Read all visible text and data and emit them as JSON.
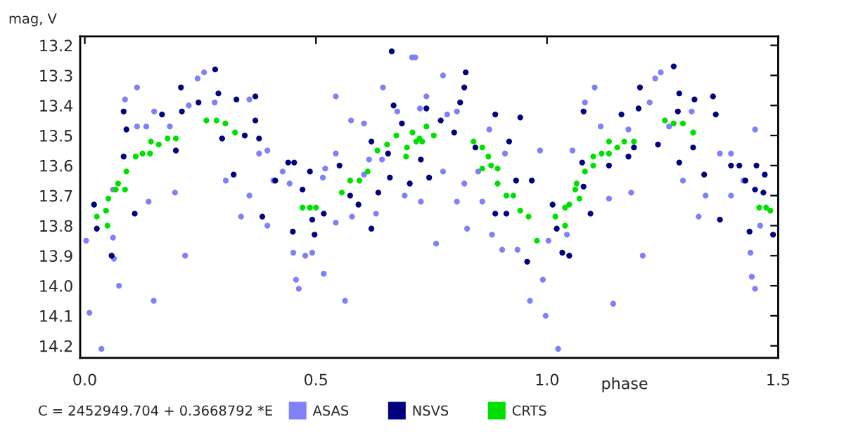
{
  "chart_data": {
    "type": "scatter",
    "xlabel": "phase",
    "ylabel": "mag, V",
    "annotations": [
      "C = 2452949.704 + 0.3668792 *E"
    ],
    "xlim": [
      -0.01,
      1.5
    ],
    "xticks": [
      {
        "value": 0,
        "label": "0.0"
      },
      0.5,
      {
        "value": 1,
        "label": "1.0"
      },
      1.5
    ],
    "ylim": [
      14.24,
      13.17
    ],
    "yticks": [
      13.2,
      13.3,
      13.4,
      13.5,
      13.6,
      13.7,
      13.8,
      13.9,
      {
        "value": 14,
        "label": "14.0"
      },
      14.1,
      14.2
    ],
    "grid": false,
    "legend": "bottom",
    "marker": "circle",
    "series": [
      {
        "name": "ASAS",
        "color": "#8080f8",
        "x": [
          0.003,
          0.01,
          0.036,
          0.061,
          0.063,
          0.074,
          0.061,
          0.087,
          0.113,
          0.113,
          0.133,
          0.138,
          0.149,
          0.15,
          0.184,
          0.195,
          0.217,
          0.225,
          0.244,
          0.258,
          0.281,
          0.297,
          0.305,
          0.338,
          0.356,
          0.356,
          0.377,
          0.395,
          0.395,
          0.408,
          0.428,
          0.443,
          0.451,
          0.457,
          0.463,
          0.477,
          0.492,
          0.515,
          0.52,
          0.543,
          0.543,
          0.543,
          0.517,
          0.563,
          0.578,
          0.576,
          0.604,
          0.615,
          0.604,
          0.63,
          0.645,
          0.643,
          0.676,
          0.692,
          0.715,
          0.725,
          0.727,
          0.708,
          0.739,
          0.76,
          0.775,
          0.775,
          0.784,
          0.805,
          0.805,
          0.821,
          0.827,
          0.851,
          0.86,
          0.875,
          0.881,
          0.909,
          0.903,
          0.936,
          0.963,
          0.985,
          0.991,
          0.997,
          1.003,
          1.024,
          1.043,
          1.055,
          1.082,
          1.103,
          1.116,
          1.134,
          1.143,
          1.176,
          1.182,
          1.207,
          1.222,
          1.246,
          1.234,
          1.264,
          1.294,
          1.313,
          1.328,
          1.343,
          1.374,
          1.398,
          1.398,
          1.425,
          1.44,
          1.443,
          1.45,
          1.461,
          1.45
        ],
        "values": [
          13.85,
          14.09,
          14.21,
          13.68,
          13.91,
          14.0,
          13.84,
          13.38,
          13.34,
          13.47,
          13.47,
          13.72,
          14.05,
          13.42,
          13.47,
          13.69,
          13.9,
          13.4,
          13.31,
          13.29,
          13.39,
          13.51,
          13.65,
          13.77,
          13.7,
          13.38,
          13.56,
          13.55,
          13.8,
          13.65,
          13.62,
          13.66,
          13.89,
          13.98,
          14.01,
          13.9,
          13.89,
          13.64,
          13.61,
          13.56,
          13.37,
          13.79,
          13.96,
          14.05,
          13.77,
          13.45,
          13.46,
          13.58,
          13.63,
          13.76,
          13.34,
          13.58,
          13.42,
          13.7,
          13.24,
          13.41,
          13.72,
          13.24,
          13.37,
          13.86,
          13.3,
          13.62,
          13.43,
          13.42,
          13.72,
          13.66,
          13.81,
          13.62,
          13.72,
          13.48,
          13.83,
          13.56,
          13.88,
          13.88,
          14.05,
          13.55,
          13.98,
          14.1,
          13.85,
          14.21,
          13.83,
          13.55,
          13.39,
          13.34,
          13.47,
          13.71,
          14.06,
          13.48,
          13.69,
          13.9,
          13.39,
          13.29,
          13.31,
          13.47,
          13.65,
          13.42,
          13.77,
          13.7,
          13.56,
          13.7,
          13.56,
          13.65,
          13.89,
          13.97,
          14.01,
          13.8,
          13.48
        ]
      },
      {
        "name": "NSVS",
        "color": "#000080",
        "x": [
          0.02,
          0.026,
          0.058,
          0.084,
          0.09,
          0.084,
          0.108,
          0.167,
          0.208,
          0.21,
          0.197,
          0.246,
          0.282,
          0.289,
          0.297,
          0.328,
          0.369,
          0.369,
          0.346,
          0.322,
          0.377,
          0.384,
          0.412,
          0.44,
          0.45,
          0.453,
          0.487,
          0.471,
          0.492,
          0.497,
          0.517,
          0.551,
          0.574,
          0.592,
          0.62,
          0.635,
          0.62,
          0.664,
          0.668,
          0.686,
          0.656,
          0.703,
          0.727,
          0.66,
          0.739,
          0.77,
          0.799,
          0.824,
          0.821,
          0.812,
          0.745,
          0.845,
          0.888,
          0.918,
          0.888,
          0.912,
          0.942,
          0.933,
          0.957,
          0.967,
          1.012,
          1.021,
          1.033,
          1.048,
          1.079,
          1.076,
          1.079,
          1.094,
          1.134,
          1.161,
          1.176,
          1.188,
          1.201,
          1.198,
          1.24,
          1.274,
          1.283,
          1.286,
          1.286,
          1.319,
          1.316,
          1.359,
          1.365,
          1.34,
          1.374,
          1.398,
          1.429,
          1.453,
          1.471,
          1.45,
          1.438,
          1.468,
          1.489,
          1.416
        ],
        "values": [
          13.73,
          13.81,
          13.9,
          13.42,
          13.48,
          13.57,
          13.76,
          13.43,
          13.34,
          13.42,
          13.55,
          13.39,
          13.28,
          13.36,
          13.51,
          13.38,
          13.37,
          13.45,
          13.5,
          13.63,
          13.51,
          13.77,
          13.65,
          13.59,
          13.82,
          13.59,
          13.62,
          13.68,
          13.78,
          13.83,
          13.76,
          13.6,
          13.7,
          13.73,
          13.81,
          13.69,
          13.52,
          13.22,
          13.4,
          13.46,
          13.56,
          13.66,
          13.58,
          13.64,
          13.41,
          13.45,
          13.49,
          13.29,
          13.34,
          13.39,
          13.64,
          13.54,
          13.43,
          13.52,
          13.76,
          13.76,
          13.44,
          13.65,
          13.92,
          13.65,
          13.73,
          13.81,
          13.89,
          13.9,
          13.42,
          13.59,
          13.67,
          13.76,
          13.6,
          13.43,
          13.57,
          13.54,
          13.34,
          13.41,
          13.53,
          13.27,
          13.42,
          13.59,
          13.36,
          13.38,
          13.54,
          13.37,
          13.43,
          13.63,
          13.78,
          13.6,
          13.65,
          13.6,
          13.63,
          13.68,
          13.82,
          13.69,
          13.83,
          13.6
        ]
      },
      {
        "name": "CRTS",
        "color": "#00e000",
        "x": [
          0.026,
          0.046,
          0.051,
          0.067,
          0.072,
          0.087,
          0.09,
          0.11,
          0.125,
          0.141,
          0.143,
          0.16,
          0.179,
          0.197,
          0.263,
          0.285,
          0.304,
          0.325,
          0.049,
          0.471,
          0.487,
          0.5,
          0.556,
          0.574,
          0.594,
          0.612,
          0.633,
          0.654,
          0.674,
          0.697,
          0.717,
          0.73,
          0.695,
          0.709,
          0.724,
          0.739,
          0.755,
          0.841,
          0.86,
          0.86,
          0.873,
          0.879,
          0.893,
          0.893,
          0.912,
          0.927,
          0.942,
          0.96,
          0.978,
          1.018,
          1.039,
          1.039,
          1.048,
          1.061,
          1.064,
          1.07,
          1.082,
          1.1,
          1.1,
          1.118,
          1.134,
          1.134,
          1.152,
          1.167,
          1.188,
          1.255,
          1.274,
          1.294,
          1.316,
          1.459,
          1.474,
          1.483
        ],
        "values": [
          13.77,
          13.75,
          13.71,
          13.68,
          13.66,
          13.68,
          13.62,
          13.57,
          13.56,
          13.56,
          13.52,
          13.53,
          13.51,
          13.51,
          13.45,
          13.45,
          13.46,
          13.49,
          13.8,
          13.74,
          13.74,
          13.74,
          13.69,
          13.65,
          13.65,
          13.62,
          13.55,
          13.53,
          13.5,
          13.54,
          13.52,
          13.52,
          13.57,
          13.49,
          13.51,
          13.47,
          13.5,
          13.52,
          13.54,
          13.61,
          13.57,
          13.6,
          13.61,
          13.66,
          13.7,
          13.7,
          13.75,
          13.77,
          13.85,
          13.77,
          13.74,
          13.8,
          13.73,
          13.68,
          13.66,
          13.71,
          13.62,
          13.6,
          13.57,
          13.56,
          13.56,
          13.52,
          13.54,
          13.52,
          13.52,
          13.45,
          13.46,
          13.46,
          13.49,
          13.74,
          13.74,
          13.75
        ]
      }
    ]
  }
}
